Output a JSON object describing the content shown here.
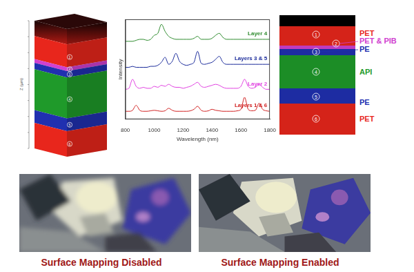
{
  "chart_data": {
    "type": "line",
    "x_label": "Wavelength (nm)",
    "y_label": "Intensity",
    "x": [
      800,
      825,
      850,
      875,
      900,
      925,
      950,
      975,
      1000,
      1025,
      1050,
      1075,
      1100,
      1125,
      1150,
      1175,
      1200,
      1225,
      1250,
      1275,
      1300,
      1325,
      1350,
      1375,
      1400,
      1425,
      1450,
      1475,
      1500,
      1525,
      1550,
      1575,
      1600,
      1625,
      1650,
      1675,
      1700,
      1725,
      1750,
      1775,
      1800
    ],
    "series": [
      {
        "name": "Layer 4",
        "color": "#2e8b2e",
        "values": [
          78,
          78,
          78,
          79,
          80,
          80,
          79,
          80,
          84,
          86,
          95,
          88,
          83,
          81,
          80,
          80,
          80,
          80,
          80,
          81,
          83,
          80,
          80,
          80,
          81,
          84,
          86,
          82,
          80,
          80,
          80,
          80,
          80,
          80,
          80,
          80,
          80,
          80,
          80,
          80,
          80
        ]
      },
      {
        "name": "Layers 3 & 5",
        "color": "#1a2a9a",
        "values": [
          52,
          52,
          53,
          52,
          52,
          52,
          52,
          53,
          53,
          54,
          57,
          62,
          55,
          58,
          66,
          58,
          55,
          54,
          55,
          57,
          68,
          56,
          55,
          56,
          57,
          60,
          63,
          57,
          55,
          55,
          55,
          55,
          55,
          55,
          55,
          55,
          55,
          55,
          55,
          55,
          55
        ]
      },
      {
        "name": "Layer 2",
        "color": "#e040e0",
        "values": [
          30,
          31,
          40,
          33,
          31,
          32,
          31,
          31,
          33,
          32,
          34,
          33,
          35,
          33,
          32,
          32,
          31,
          32,
          33,
          35,
          37,
          33,
          32,
          33,
          34,
          35,
          34,
          32,
          31,
          31,
          31,
          31,
          33,
          40,
          33,
          31,
          32,
          35,
          32,
          30,
          30
        ]
      },
      {
        "name": "Layers 1 & 6",
        "color": "#d02020",
        "values": [
          8,
          8,
          9,
          14,
          9,
          8,
          8,
          8.5,
          9,
          8.5,
          8,
          8.5,
          11,
          9,
          8,
          8,
          8,
          8,
          8.5,
          10,
          13,
          9,
          8,
          8.5,
          10,
          9,
          8.5,
          8,
          8,
          8,
          8,
          8.5,
          10,
          22,
          10,
          8.5,
          9,
          16,
          10,
          8.5,
          8
        ]
      }
    ],
    "xlim": [
      800,
      1800
    ],
    "xticks": [
      800,
      1000,
      1200,
      1400,
      1600,
      1800
    ],
    "ylim": [
      0,
      100
    ],
    "grid": false,
    "tick_labels": "x"
  },
  "cube": {
    "z_label": "Z (µm)",
    "layer_labels": [
      1,
      2,
      3,
      4,
      5,
      6
    ]
  },
  "layer_diagram": {
    "layers": [
      {
        "number": 1,
        "material": "PET",
        "color": "#e8261c"
      },
      {
        "number": 2,
        "material": "PET & PIB",
        "color": "#d040d0"
      },
      {
        "number": 3,
        "material": "PE",
        "color": "#2030b0"
      },
      {
        "number": 4,
        "material": "API",
        "color": "#1f9a2a"
      },
      {
        "number": 5,
        "material": "PE",
        "color": "#2030b0"
      },
      {
        "number": 6,
        "material": "PET",
        "color": "#e8261c"
      }
    ]
  },
  "photos": [
    {
      "caption": "Surface Mapping Disabled"
    },
    {
      "caption": "Surface Mapping Enabled"
    }
  ]
}
